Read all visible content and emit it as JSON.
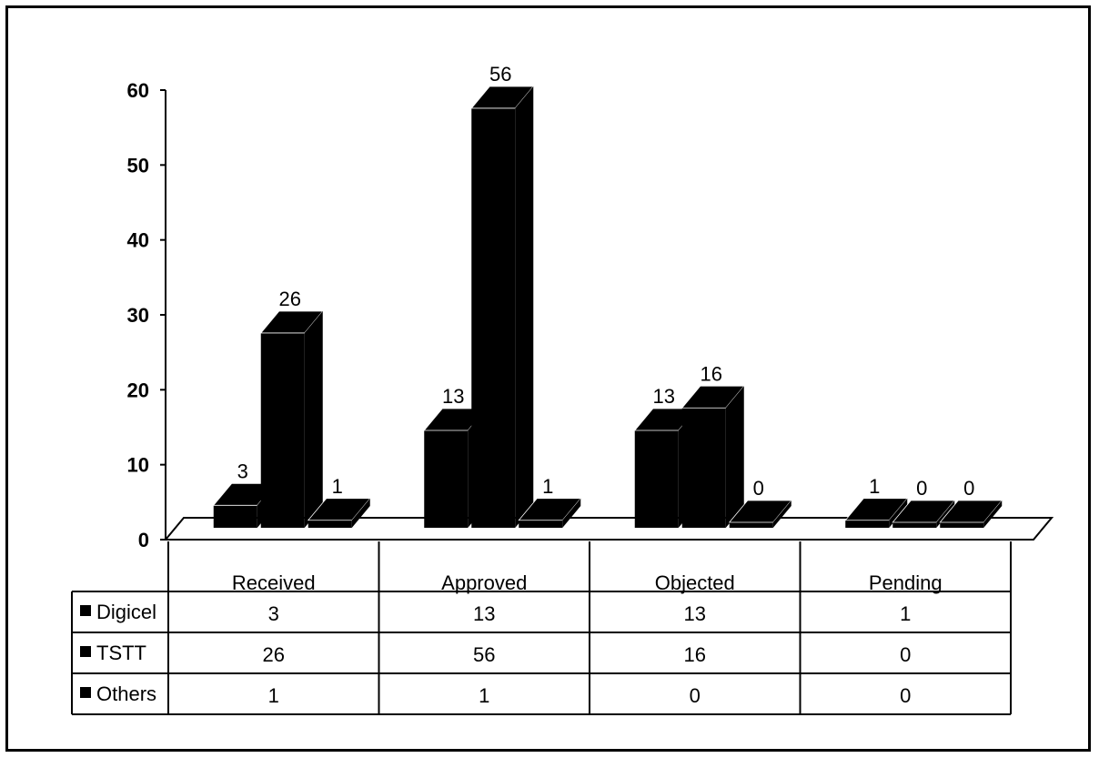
{
  "chart_data": {
    "type": "bar",
    "title": "",
    "xlabel": "",
    "ylabel": "",
    "categories": [
      "Received",
      "Approved",
      "Objected",
      "Pending"
    ],
    "series": [
      {
        "name": "Digicel",
        "values": [
          3,
          13,
          13,
          1
        ]
      },
      {
        "name": "TSTT",
        "values": [
          26,
          56,
          16,
          0
        ]
      },
      {
        "name": "Others",
        "values": [
          1,
          1,
          0,
          0
        ]
      }
    ],
    "ylim": [
      0,
      60
    ],
    "yticks": [
      "0",
      "10",
      "20",
      "30",
      "40",
      "50",
      "60"
    ],
    "legend": "data-table",
    "three_d": true,
    "bar_color": "#000000",
    "grid": false
  }
}
